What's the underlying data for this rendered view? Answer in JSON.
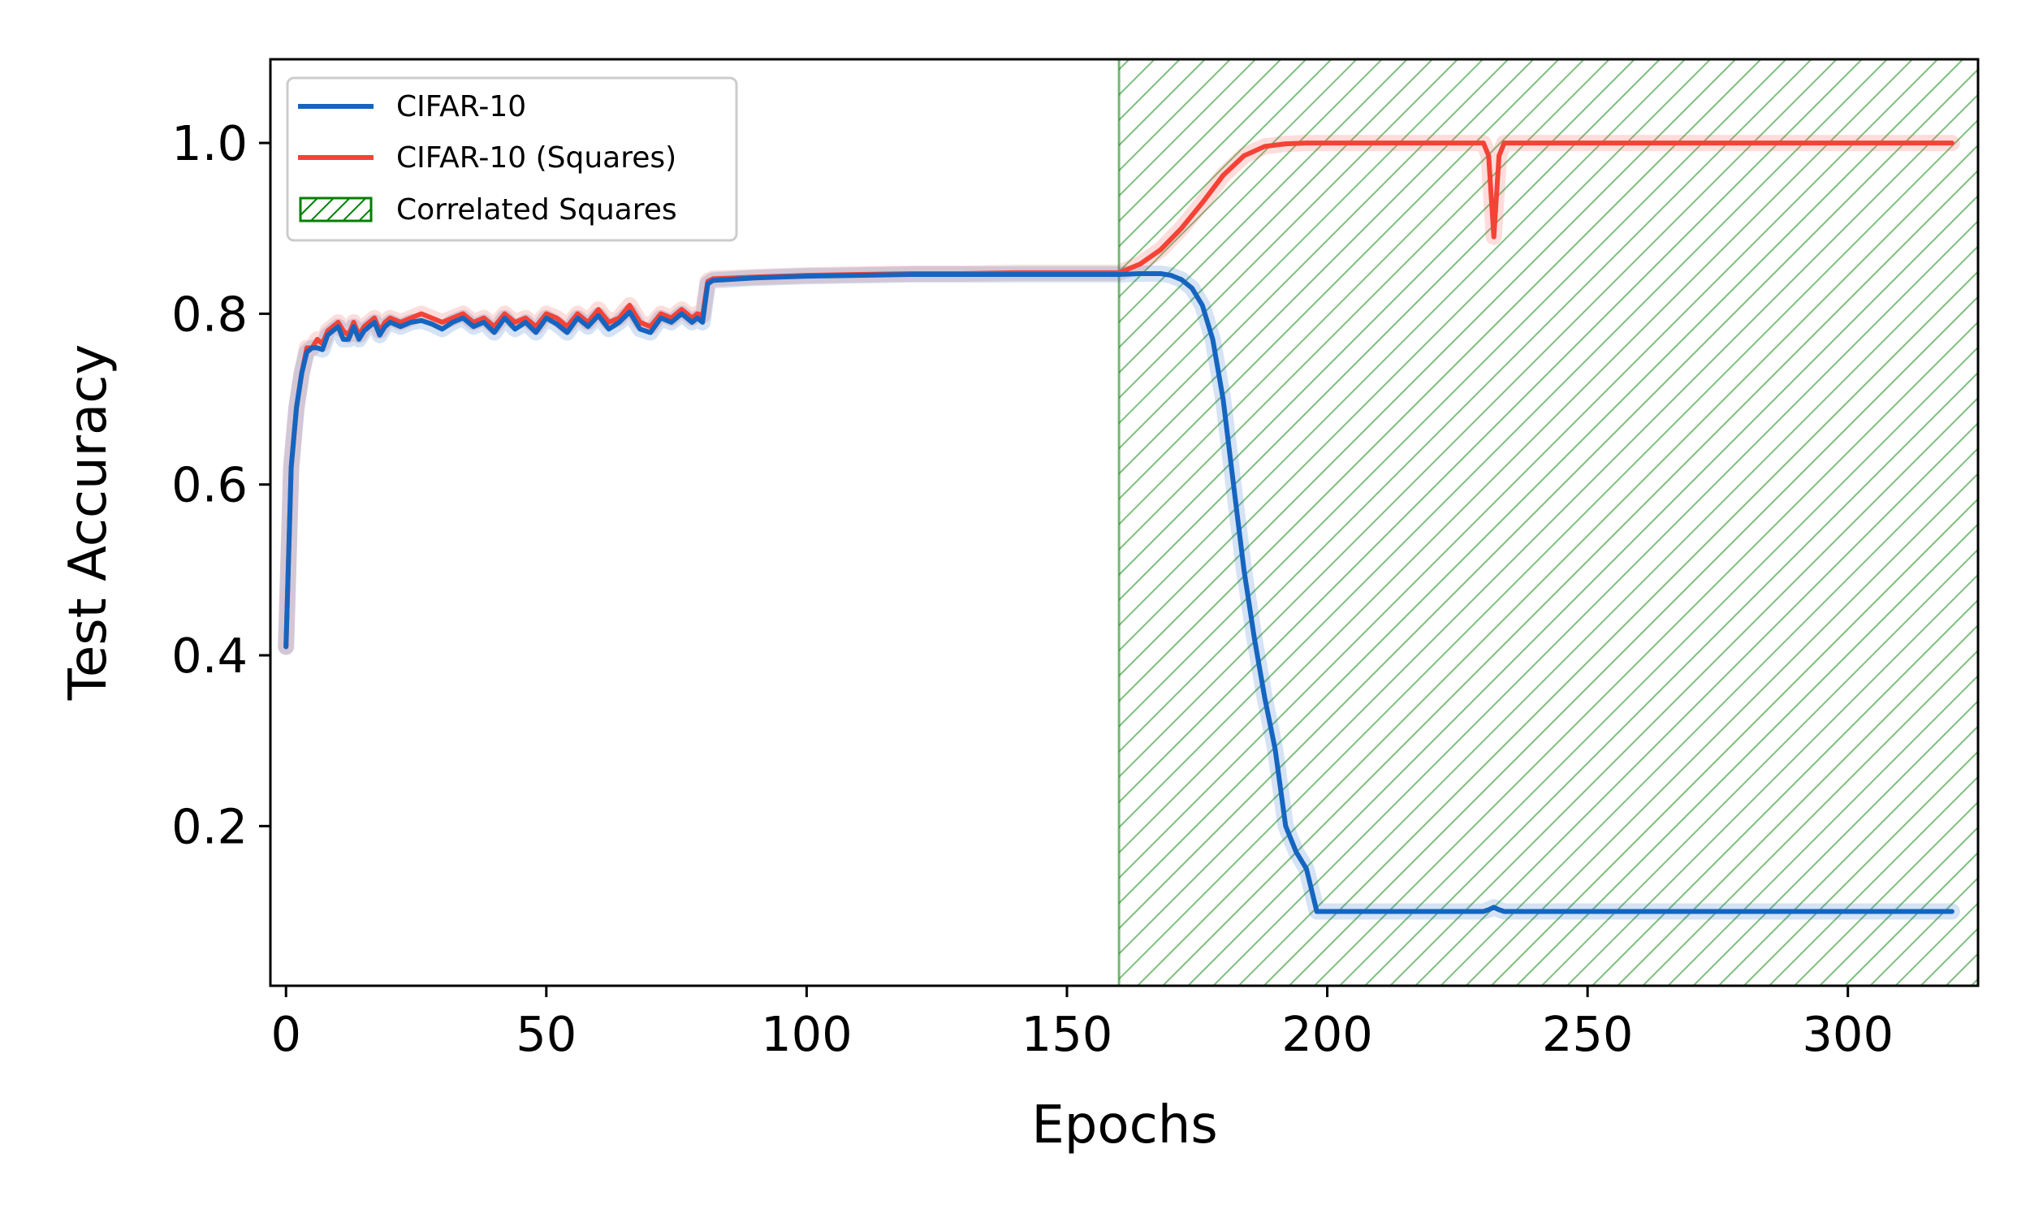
{
  "chart_data": {
    "type": "line",
    "xlabel": "Epochs",
    "ylabel": "Test Accuracy",
    "xlim": [
      -3,
      325
    ],
    "ylim": [
      0.013,
      1.098
    ],
    "xticks": [
      0,
      50,
      100,
      150,
      200,
      250,
      300
    ],
    "xtick_labels": [
      "0",
      "50",
      "100",
      "150",
      "200",
      "250",
      "300"
    ],
    "yticks": [
      0.2,
      0.4,
      0.6,
      0.8,
      1.0
    ],
    "ytick_labels": [
      "0.2",
      "0.4",
      "0.6",
      "0.8",
      "1.0"
    ],
    "grid": false,
    "legend_position": "top-left",
    "legend": [
      "CIFAR-10",
      "CIFAR-10 (Squares)",
      "Correlated Squares"
    ],
    "shaded_region": {
      "label": "Correlated Squares",
      "x_start": 160,
      "x_end": 325,
      "color": "#008000",
      "pattern": "diagonal-hatch"
    },
    "series": [
      {
        "name": "CIFAR-10 (Squares)",
        "color": "#f44336",
        "x": [
          0,
          1,
          2,
          3,
          4,
          5,
          6,
          7,
          8,
          9,
          10,
          11,
          12,
          13,
          14,
          15,
          16,
          17,
          18,
          19,
          20,
          22,
          24,
          26,
          28,
          30,
          32,
          34,
          36,
          38,
          40,
          42,
          44,
          46,
          48,
          50,
          52,
          54,
          56,
          58,
          60,
          62,
          64,
          66,
          68,
          70,
          72,
          74,
          76,
          78,
          79,
          80,
          81,
          82,
          90,
          100,
          110,
          120,
          130,
          140,
          150,
          160,
          164,
          168,
          172,
          176,
          180,
          184,
          188,
          192,
          196,
          200,
          210,
          220,
          230,
          231,
          232,
          233,
          234,
          240,
          260,
          280,
          300,
          320
        ],
        "y": [
          0.41,
          0.62,
          0.69,
          0.73,
          0.76,
          0.76,
          0.77,
          0.765,
          0.78,
          0.785,
          0.79,
          0.78,
          0.775,
          0.79,
          0.775,
          0.785,
          0.79,
          0.795,
          0.78,
          0.79,
          0.795,
          0.79,
          0.795,
          0.8,
          0.795,
          0.79,
          0.795,
          0.8,
          0.79,
          0.795,
          0.785,
          0.8,
          0.79,
          0.795,
          0.785,
          0.8,
          0.795,
          0.785,
          0.8,
          0.79,
          0.805,
          0.79,
          0.795,
          0.81,
          0.79,
          0.785,
          0.8,
          0.795,
          0.805,
          0.795,
          0.8,
          0.798,
          0.838,
          0.841,
          0.843,
          0.845,
          0.846,
          0.847,
          0.847,
          0.848,
          0.848,
          0.848,
          0.858,
          0.875,
          0.9,
          0.93,
          0.962,
          0.985,
          0.996,
          0.999,
          1.0,
          1.0,
          1.0,
          1.0,
          1.0,
          0.985,
          0.89,
          0.985,
          1.0,
          1.0,
          1.0,
          1.0,
          1.0,
          1.0
        ]
      },
      {
        "name": "CIFAR-10",
        "color": "#1565c0",
        "x": [
          0,
          1,
          2,
          3,
          4,
          5,
          6,
          7,
          8,
          9,
          10,
          11,
          12,
          13,
          14,
          15,
          16,
          17,
          18,
          19,
          20,
          22,
          24,
          26,
          28,
          30,
          32,
          34,
          36,
          38,
          40,
          42,
          44,
          46,
          48,
          50,
          52,
          54,
          56,
          58,
          60,
          62,
          64,
          66,
          68,
          70,
          72,
          74,
          76,
          78,
          79,
          80,
          81,
          82,
          90,
          100,
          110,
          120,
          130,
          140,
          150,
          160,
          164,
          168,
          170,
          172,
          174,
          176,
          178,
          180,
          182,
          184,
          186,
          188,
          190,
          192,
          194,
          196,
          198,
          200,
          210,
          220,
          230,
          231,
          232,
          233,
          234,
          240,
          260,
          280,
          300,
          320
        ],
        "y": [
          0.41,
          0.62,
          0.69,
          0.73,
          0.755,
          0.76,
          0.76,
          0.758,
          0.775,
          0.78,
          0.785,
          0.77,
          0.77,
          0.785,
          0.77,
          0.78,
          0.785,
          0.79,
          0.775,
          0.785,
          0.79,
          0.785,
          0.79,
          0.792,
          0.788,
          0.782,
          0.79,
          0.795,
          0.785,
          0.79,
          0.778,
          0.795,
          0.782,
          0.79,
          0.778,
          0.795,
          0.788,
          0.778,
          0.795,
          0.785,
          0.798,
          0.782,
          0.79,
          0.802,
          0.782,
          0.778,
          0.795,
          0.79,
          0.8,
          0.79,
          0.795,
          0.79,
          0.835,
          0.839,
          0.842,
          0.844,
          0.845,
          0.846,
          0.846,
          0.846,
          0.846,
          0.846,
          0.847,
          0.847,
          0.845,
          0.84,
          0.83,
          0.81,
          0.77,
          0.7,
          0.6,
          0.5,
          0.42,
          0.35,
          0.29,
          0.2,
          0.17,
          0.15,
          0.1,
          0.1,
          0.1,
          0.1,
          0.1,
          0.102,
          0.105,
          0.102,
          0.1,
          0.1,
          0.1,
          0.1,
          0.1,
          0.1
        ]
      }
    ]
  }
}
